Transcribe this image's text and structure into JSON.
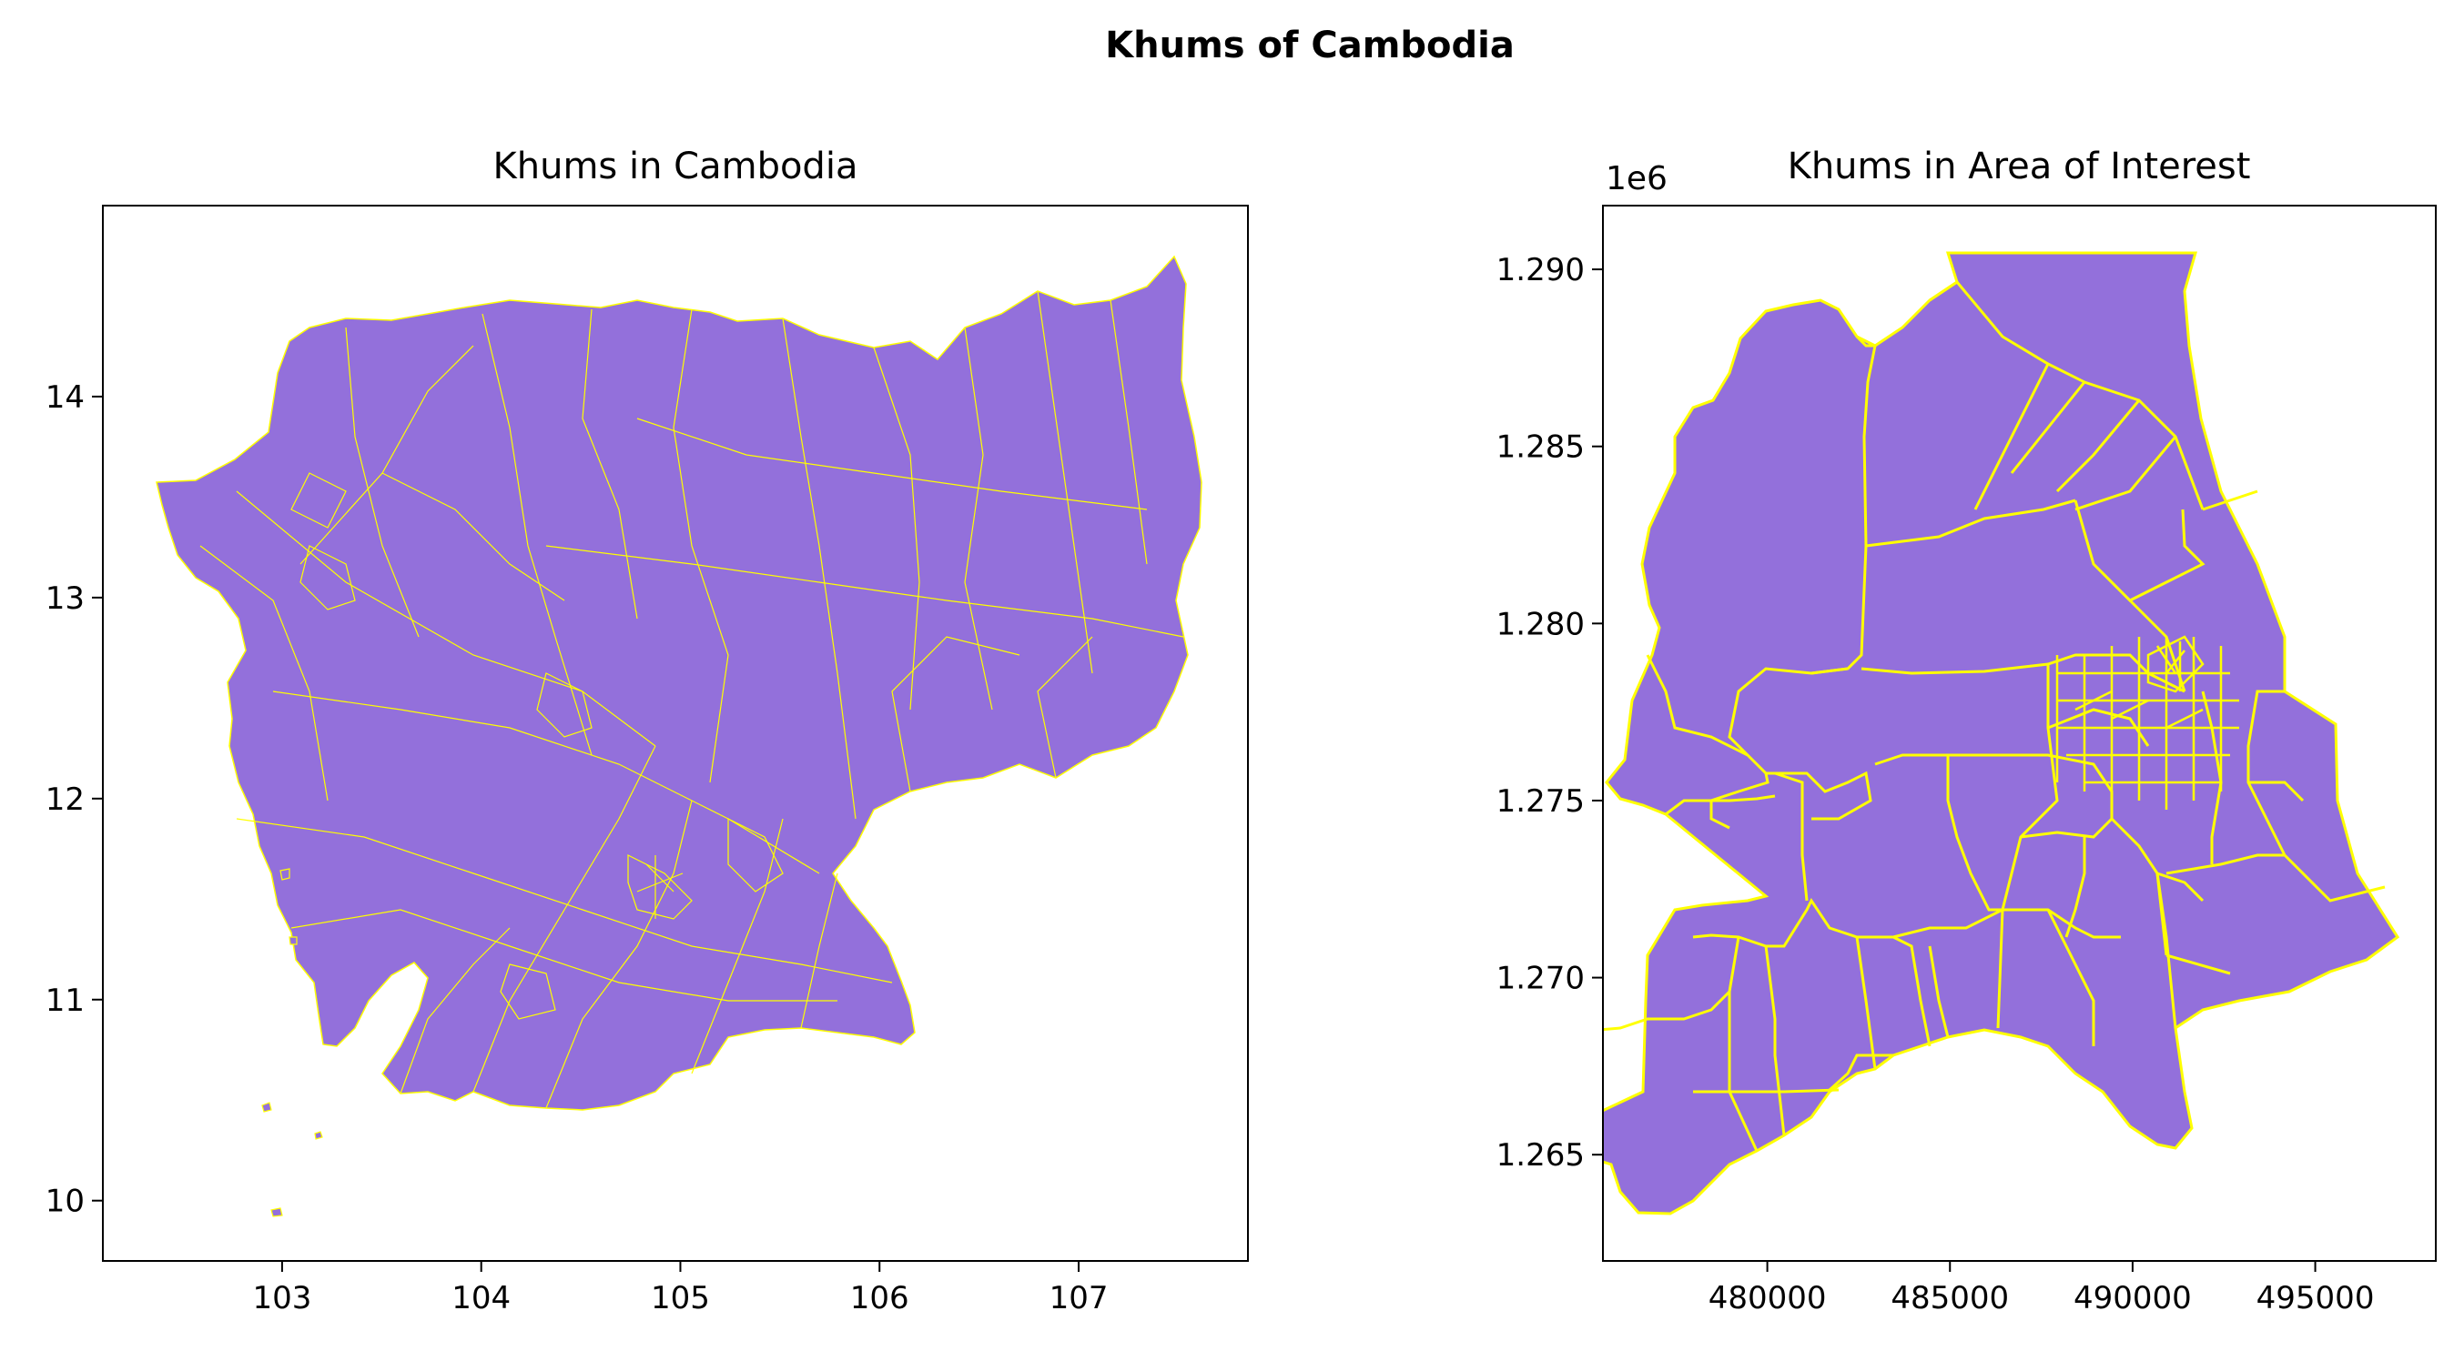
{
  "figure": {
    "suptitle": "Khums of Cambodia"
  },
  "colors": {
    "fill": "#9370db",
    "edge": "#ffff00",
    "axes": "#000000"
  },
  "chart_data": [
    {
      "type": "map",
      "title": "Khums in Cambodia",
      "xlabel": "",
      "ylabel": "",
      "xlim": [
        102.1,
        107.85
      ],
      "ylim": [
        9.7,
        14.95
      ],
      "xticks": [
        "103",
        "104",
        "105",
        "106",
        "107"
      ],
      "xtick_values": [
        103,
        104,
        105,
        106,
        107
      ],
      "yticks": [
        "10",
        "11",
        "12",
        "13",
        "14"
      ],
      "ytick_values": [
        10,
        11,
        12,
        13,
        14
      ],
      "grid": false,
      "legend": "none"
    },
    {
      "type": "map",
      "title": "Khums in Area of Interest",
      "xlabel": "",
      "ylabel": "",
      "offset_label": "1e6",
      "xlim": [
        475500,
        498300
      ],
      "ylim": [
        1262000,
        1291800
      ],
      "xticks": [
        "480000",
        "485000",
        "490000",
        "495000"
      ],
      "xtick_values": [
        480000,
        485000,
        490000,
        495000
      ],
      "yticks": [
        "1.265",
        "1.270",
        "1.275",
        "1.280",
        "1.285",
        "1.290"
      ],
      "ytick_values": [
        1265000,
        1270000,
        1275000,
        1280000,
        1285000,
        1290000
      ],
      "grid": false,
      "legend": "none"
    }
  ]
}
